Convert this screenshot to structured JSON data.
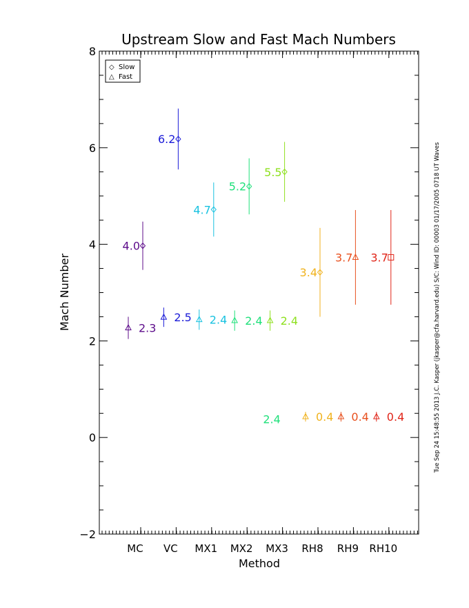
{
  "chart_data": {
    "type": "scatter",
    "title": "Upstream Slow and Fast Mach Numbers",
    "xlabel": "Method",
    "ylabel": "Mach Number",
    "ylim": [
      -2,
      8
    ],
    "yticks": [
      "−2",
      "0",
      "2",
      "4",
      "6",
      "8"
    ],
    "categories": [
      "MC",
      "VC",
      "MX1",
      "MX2",
      "MX3",
      "RH8",
      "RH9",
      "RH10"
    ],
    "legend": {
      "position": "top-left",
      "entries": [
        {
          "symbol": "◇",
          "label": "Slow"
        },
        {
          "symbol": "△",
          "label": "Fast"
        }
      ]
    },
    "series": [
      {
        "name": "Slow",
        "points": [
          {
            "category": "MC",
            "y": 3.97,
            "err": 0.5,
            "label": "4.0",
            "color": "#5c0b8a",
            "marker": "diamond"
          },
          {
            "category": "VC",
            "y": 6.18,
            "err": 0.63,
            "label": "6.2",
            "color": "#1b1bd8",
            "marker": "diamond"
          },
          {
            "category": "MX1",
            "y": 4.72,
            "err": 0.56,
            "label": "4.7",
            "color": "#18c2e0",
            "marker": "diamond"
          },
          {
            "category": "MX2",
            "y": 5.2,
            "err": 0.58,
            "label": "5.2",
            "color": "#1ee07a",
            "marker": "diamond"
          },
          {
            "category": "MX3",
            "y": 5.5,
            "err": 0.62,
            "label": "5.5",
            "color": "#8ee01e",
            "marker": "diamond"
          },
          {
            "category": "RH8",
            "y": 3.42,
            "err": 0.92,
            "label": "3.4",
            "color": "#f0b21c",
            "marker": "diamond"
          },
          {
            "category": "RH9",
            "y": 3.73,
            "err": 0.98,
            "label": "3.7",
            "color": "#e8501e",
            "marker": "triangle"
          },
          {
            "category": "RH10",
            "y": 3.73,
            "err": 0.98,
            "label": "3.7",
            "color": "#e02418",
            "marker": "square"
          }
        ]
      },
      {
        "name": "Fast",
        "points": [
          {
            "category": "MC",
            "y": 2.27,
            "err": 0.23,
            "label": "2.3",
            "color": "#5c0b8a",
            "marker": "triangle"
          },
          {
            "category": "VC",
            "y": 2.49,
            "err": 0.2,
            "label": "2.5",
            "color": "#1b1bd8",
            "marker": "triangle"
          },
          {
            "category": "MX1",
            "y": 2.44,
            "err": 0.21,
            "label": "2.4",
            "color": "#18c2e0",
            "marker": "triangle"
          },
          {
            "category": "MX2",
            "y": 2.42,
            "err": 0.21,
            "label": "2.4",
            "color": "#1ee07a",
            "marker": "triangle"
          },
          {
            "category": "MX3",
            "y": 2.42,
            "err": 0.21,
            "label": "2.4",
            "color": "#8ee01e",
            "marker": "triangle"
          },
          {
            "category": "RH8",
            "y": 0.43,
            "err": 0.1,
            "label": "0.4",
            "color": "#f0b21c",
            "marker": "triangle"
          },
          {
            "category": "RH9",
            "y": 0.43,
            "err": 0.1,
            "label": "0.4",
            "color": "#e8501e",
            "marker": "triangle"
          },
          {
            "category": "RH10",
            "y": 0.43,
            "err": 0.1,
            "label": "0.4",
            "color": "#e02418",
            "marker": "triangle"
          }
        ]
      }
    ],
    "annotations": [
      {
        "text": "2.4",
        "x": 3.8,
        "y": 0.38,
        "color": "#1ee07a"
      }
    ]
  },
  "side_caption": "Tue Sep 24 15:48:55 2013   J.C. Kasper (jkasper@cfa.harvard.edu)   S/C: Wind ID: 00003 01/17/2005   0718 UT Waves"
}
